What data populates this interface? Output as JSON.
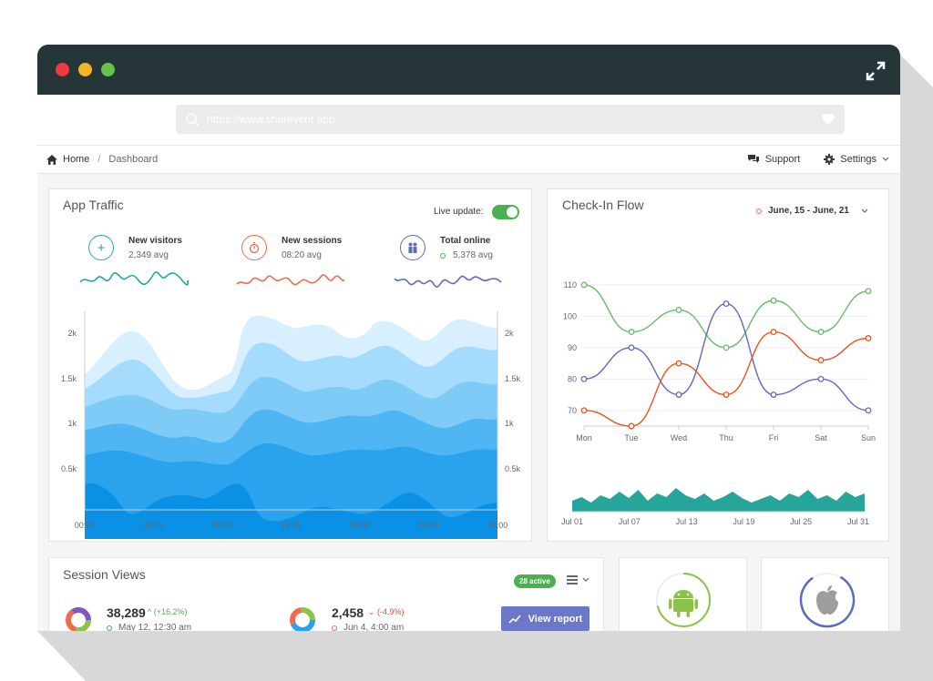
{
  "window": {
    "url_placeholder": "https://www.sharevent.app"
  },
  "breadcrumb": {
    "home": "Home",
    "separator": "/",
    "current": "Dashboard"
  },
  "nav": {
    "support": "Support",
    "settings": "Settings"
  },
  "traffic": {
    "title": "App Traffic",
    "live_label": "Live update:",
    "live_on": true,
    "stats": [
      {
        "name": "New visitors",
        "value": "2,349 avg",
        "icon": "plus-icon",
        "color": "#26a69a"
      },
      {
        "name": "New sessions",
        "value": "08:20 avg",
        "icon": "stopwatch-icon",
        "color": "#f06a4d"
      },
      {
        "name": "Total online",
        "value": "5,378 avg",
        "icon": "users-icon",
        "color": "#5c6bc0"
      }
    ],
    "y_ticks": [
      "2k",
      "1.5k",
      "1k",
      "0.5k"
    ],
    "x_ticks": [
      "00:00",
      "04:00",
      "08:00",
      "12:00",
      "16:00",
      "20:00",
      "00:00"
    ]
  },
  "checkin": {
    "title": "Check-In Flow",
    "date_range": "June, 15 - June, 21"
  },
  "chart_data": {
    "type": "line",
    "categories": [
      "Mon",
      "Tue",
      "Wed",
      "Thu",
      "Fri",
      "Sat",
      "Sun"
    ],
    "ylim": [
      65,
      112
    ],
    "yticks": [
      110,
      100,
      90,
      80,
      70
    ],
    "series": [
      {
        "color": "#66bb6a",
        "values": [
          110,
          95,
          102,
          90,
          105,
          95,
          108
        ]
      },
      {
        "color": "#5c6bc0",
        "values": [
          80,
          90,
          75,
          104,
          75,
          80,
          70
        ]
      },
      {
        "color": "#f4511e",
        "values": [
          70,
          65,
          85,
          75,
          95,
          86,
          93
        ]
      }
    ],
    "mini_x_ticks": [
      "Jul 01",
      "Jul 07",
      "Jul 13",
      "Jul 19",
      "Jul 25",
      "Jul 31"
    ],
    "mini_color": "#26a69a"
  },
  "sessions": {
    "title": "Session Views",
    "badge": "28 active",
    "stat1_value": "38,289",
    "stat1_change": "(+16.2%)",
    "stat1_date": "May 12, 12:30 am",
    "stat2_value": "2,458",
    "stat2_change": "(-4.9%)",
    "stat2_date": "Jun 4, 4:00 am",
    "report_label": "View report"
  },
  "platforms": [
    {
      "name": "android-icon",
      "color": "#8bc34a"
    },
    {
      "name": "apple-icon",
      "color": "#5c6bc0"
    }
  ]
}
